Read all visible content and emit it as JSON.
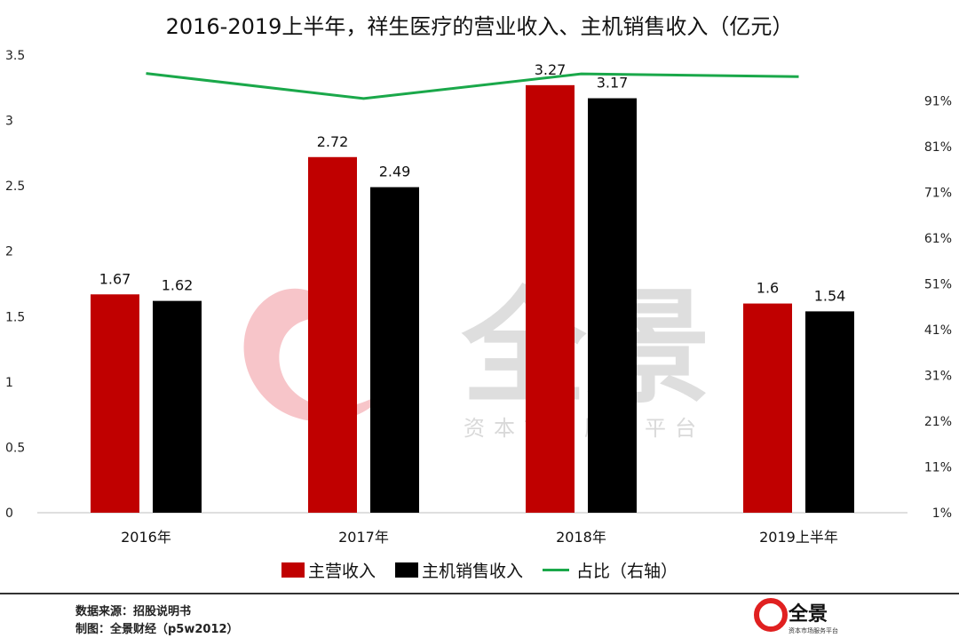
{
  "chart_data": {
    "type": "bar",
    "title": "2016-2019上半年，祥生医疗的营业收入、主机销售收入（亿元）",
    "categories": [
      "2016年",
      "2017年",
      "2018年",
      "2019上半年"
    ],
    "series": [
      {
        "name": "主营收入",
        "type": "bar",
        "axis": "left",
        "color": "#c00000",
        "values": [
          1.67,
          2.72,
          3.27,
          1.6
        ],
        "labels": [
          "1.67",
          "2.72",
          "3.27",
          "1.6"
        ]
      },
      {
        "name": "主机销售收入",
        "type": "bar",
        "axis": "left",
        "color": "#000000",
        "values": [
          1.62,
          2.49,
          3.17,
          1.54
        ],
        "labels": [
          "1.62",
          "2.49",
          "3.17",
          "1.54"
        ]
      },
      {
        "name": "占比（右轴）",
        "type": "line",
        "axis": "right",
        "color": "#1aa84a",
        "values": [
          0.97,
          0.915,
          0.969,
          0.963
        ]
      }
    ],
    "ylim": [
      0,
      3.5
    ],
    "yticks": [
      "0",
      "0.5",
      "1",
      "1.5",
      "2",
      "2.5",
      "3",
      "3.5"
    ],
    "y2lim": [
      0.01,
      1.01
    ],
    "y2ticks": [
      "1%",
      "11%",
      "21%",
      "31%",
      "41%",
      "51%",
      "61%",
      "71%",
      "81%",
      "91%"
    ],
    "grid": false,
    "legend": "bottom"
  },
  "watermark": {
    "logo_text": "全景",
    "tagline": "资本市场服务平台"
  },
  "footer": {
    "source": "数据来源：招股说明书",
    "credit": "制图：全景财经（p5w2012）",
    "logo_text": "全景",
    "logo_tagline": "资本市场服务平台"
  }
}
